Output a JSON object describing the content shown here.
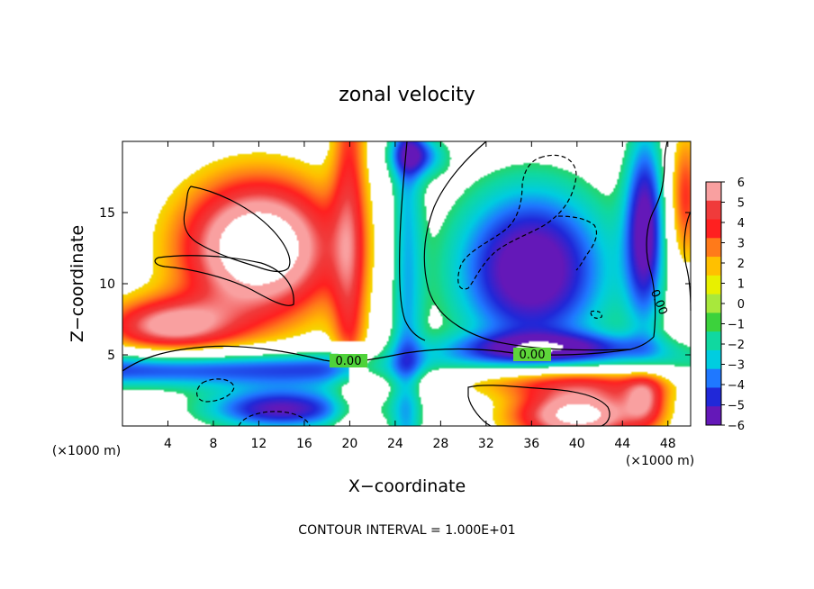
{
  "chart_data": {
    "type": "heatmap",
    "title": "zonal velocity",
    "xlabel": "X−coordinate",
    "ylabel": "Z−coordinate",
    "x_unit": "(×1000 m)",
    "x_unit_right": "(×1000 m)",
    "xlim": [
      0,
      50
    ],
    "ylim": [
      0,
      20
    ],
    "x_ticks": [
      "4",
      "8",
      "12",
      "16",
      "20",
      "24",
      "28",
      "32",
      "36",
      "40",
      "44",
      "48"
    ],
    "x_tick_values": [
      4,
      8,
      12,
      16,
      20,
      24,
      28,
      32,
      36,
      40,
      44,
      48
    ],
    "y_ticks": [
      "5",
      "10",
      "15"
    ],
    "y_tick_values": [
      5,
      10,
      15
    ],
    "colorbar": {
      "labels": [
        "6",
        "5",
        "4",
        "3",
        "2",
        "1",
        "0",
        "−1",
        "−2",
        "−3",
        "−4",
        "−5",
        "−6"
      ],
      "colors": [
        "#f9a0a0",
        "#f03b3b",
        "#ff2020",
        "#ff7a1a",
        "#ffc000",
        "#e8f000",
        "#a8e83c",
        "#3cd23c",
        "#10d8a0",
        "#00cde0",
        "#1f78ff",
        "#2028d8",
        "#6418b8"
      ]
    },
    "contour_labels": [
      "0.00",
      "0.00",
      "0.00"
    ],
    "footer": "CONTOUR INTERVAL = 1.000E+01",
    "white_background_limits": [
      -1.5,
      1.5
    ]
  }
}
